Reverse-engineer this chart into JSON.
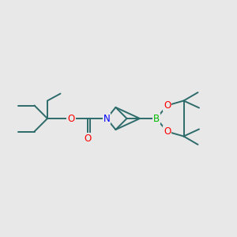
{
  "background_color": "#e8e8e8",
  "bond_color": "#2d6b6b",
  "atom_colors": {
    "N": "#0000ff",
    "O": "#ff0000",
    "B": "#00bb00",
    "C": "#2d6b6b"
  },
  "figsize": [
    3.0,
    3.0
  ],
  "dpi": 100,
  "xlim": [
    0,
    10
  ],
  "ylim": [
    2,
    8
  ]
}
